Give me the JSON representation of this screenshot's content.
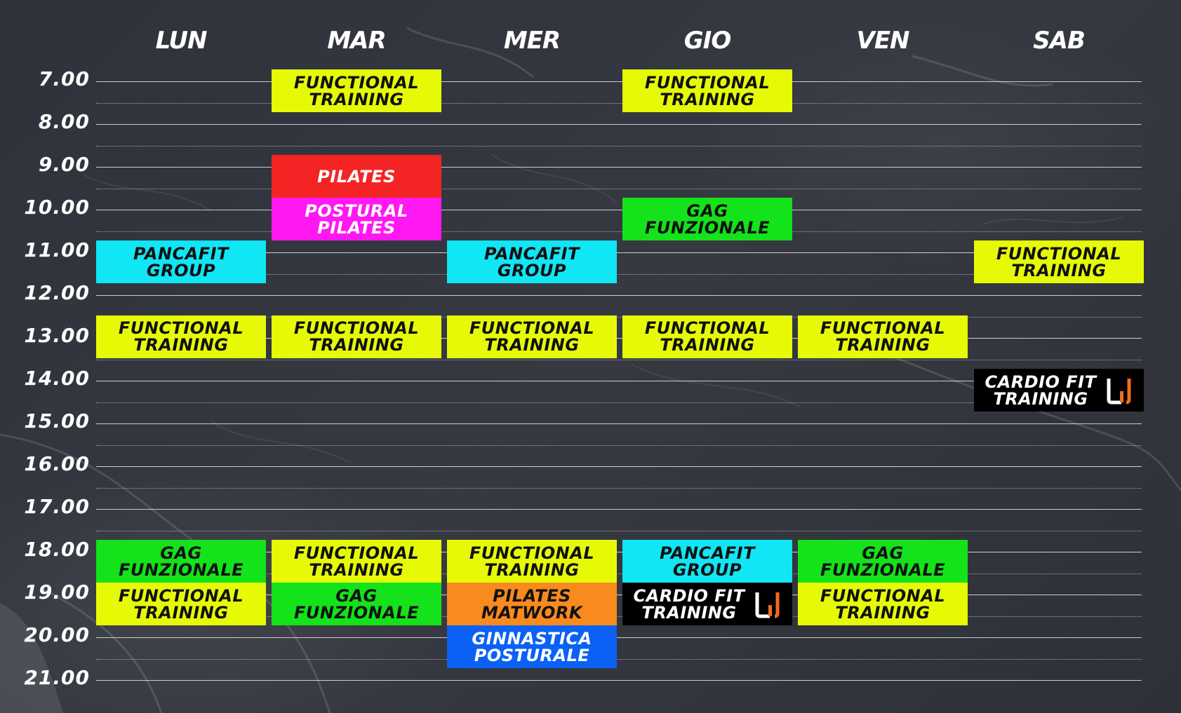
{
  "days": [
    "LUN",
    "MAR",
    "MER",
    "GIO",
    "VEN",
    "SAB"
  ],
  "times": [
    "7.00",
    "8.00",
    "9.00",
    "10.00",
    "11.00",
    "12.00",
    "13.00",
    "14.00",
    "15.00",
    "16.00",
    "17.00",
    "18.00",
    "19.00",
    "20.00",
    "21.00"
  ],
  "colors": {
    "yellow": "#e6fa06",
    "red": "#f42424",
    "magenta": "#ff18f2",
    "green": "#14e21a",
    "cyan": "#10e6f4",
    "orange": "#f98a1e",
    "blue": "#0b61f5",
    "black": "#000000",
    "logo_accent": "#f26b21"
  },
  "classes": [
    {
      "day": 1,
      "start": 7.0,
      "end": 8.0,
      "label": "FUNCTIONAL\nTRAINING",
      "color": "yellow"
    },
    {
      "day": 3,
      "start": 7.0,
      "end": 8.0,
      "label": "FUNCTIONAL\nTRAINING",
      "color": "yellow"
    },
    {
      "day": 1,
      "start": 9.0,
      "end": 10.0,
      "label": "PILATES",
      "color": "red"
    },
    {
      "day": 1,
      "start": 10.0,
      "end": 11.0,
      "label": "POSTURAL\nPILATES",
      "color": "magenta"
    },
    {
      "day": 3,
      "start": 10.0,
      "end": 11.0,
      "label": "GAG\nFUNZIONALE",
      "color": "green"
    },
    {
      "day": 0,
      "start": 11.0,
      "end": 12.0,
      "label": "PANCAFIT\nGROUP",
      "color": "cyan"
    },
    {
      "day": 2,
      "start": 11.0,
      "end": 12.0,
      "label": "PANCAFIT\nGROUP",
      "color": "cyan"
    },
    {
      "day": 5,
      "start": 11.0,
      "end": 12.0,
      "label": "FUNCTIONAL\nTRAINING",
      "color": "yellow"
    },
    {
      "day": 0,
      "start": 12.75,
      "end": 13.75,
      "label": "FUNCTIONAL\nTRAINING",
      "color": "yellow"
    },
    {
      "day": 1,
      "start": 12.75,
      "end": 13.75,
      "label": "FUNCTIONAL\nTRAINING",
      "color": "yellow"
    },
    {
      "day": 2,
      "start": 12.75,
      "end": 13.75,
      "label": "FUNCTIONAL\nTRAINING",
      "color": "yellow"
    },
    {
      "day": 3,
      "start": 12.75,
      "end": 13.75,
      "label": "FUNCTIONAL\nTRAINING",
      "color": "yellow"
    },
    {
      "day": 4,
      "start": 12.75,
      "end": 13.75,
      "label": "FUNCTIONAL\nTRAINING",
      "color": "yellow"
    },
    {
      "day": 5,
      "start": 14.0,
      "end": 15.0,
      "label": "CARDIO FIT\nTRAINING",
      "color": "black",
      "logo": true
    },
    {
      "day": 0,
      "start": 18.0,
      "end": 19.0,
      "label": "GAG\nFUNZIONALE",
      "color": "green"
    },
    {
      "day": 1,
      "start": 18.0,
      "end": 19.0,
      "label": "FUNCTIONAL\nTRAINING",
      "color": "yellow"
    },
    {
      "day": 2,
      "start": 18.0,
      "end": 19.0,
      "label": "FUNCTIONAL\nTRAINING",
      "color": "yellow"
    },
    {
      "day": 3,
      "start": 18.0,
      "end": 19.0,
      "label": "PANCAFIT\nGROUP",
      "color": "cyan"
    },
    {
      "day": 4,
      "start": 18.0,
      "end": 19.0,
      "label": "GAG\nFUNZIONALE",
      "color": "green"
    },
    {
      "day": 0,
      "start": 19.0,
      "end": 20.0,
      "label": "FUNCTIONAL\nTRAINING",
      "color": "yellow"
    },
    {
      "day": 1,
      "start": 19.0,
      "end": 20.0,
      "label": "GAG\nFUNZIONALE",
      "color": "green"
    },
    {
      "day": 2,
      "start": 19.0,
      "end": 20.0,
      "label": "PILATES\nMATWORK",
      "color": "orange"
    },
    {
      "day": 3,
      "start": 19.0,
      "end": 20.0,
      "label": "CARDIO FIT\nTRAINING",
      "color": "black",
      "logo": true
    },
    {
      "day": 4,
      "start": 19.0,
      "end": 20.0,
      "label": "FUNCTIONAL\nTRAINING",
      "color": "yellow"
    },
    {
      "day": 2,
      "start": 20.0,
      "end": 21.0,
      "label": "GINNASTICA\nPOSTURALE",
      "color": "blue"
    }
  ]
}
